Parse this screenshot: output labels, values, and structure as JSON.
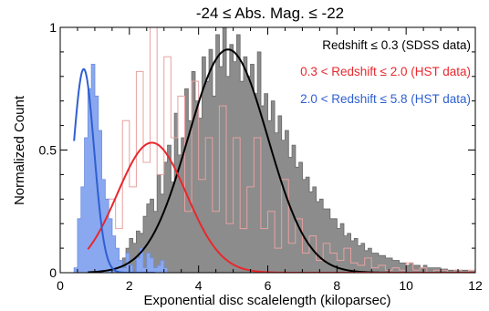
{
  "chart_data": {
    "type": "histogram",
    "title": "-24 ≤ Abs. Mag. ≤ -22",
    "xlabel": "Exponential disc scalelength (kiloparsec)",
    "ylabel": "Normalized Count",
    "xlim": [
      0,
      12
    ],
    "ylim": [
      0,
      1
    ],
    "x_ticks": [
      {
        "value": 0,
        "label": "0"
      },
      {
        "value": 2,
        "label": "2"
      },
      {
        "value": 4,
        "label": "4"
      },
      {
        "value": 6,
        "label": "6"
      },
      {
        "value": 8,
        "label": "8"
      },
      {
        "value": 10,
        "label": "10"
      },
      {
        "value": 12,
        "label": "12"
      }
    ],
    "y_ticks": [
      {
        "value": 0,
        "label": "0"
      },
      {
        "value": 0.5,
        "label": "0.5"
      },
      {
        "value": 1,
        "label": "1"
      }
    ],
    "grid": false,
    "legend_position": "top-right",
    "series": [
      {
        "name": "Redshift ≤ 0.3 (SDSS data)",
        "color": "#000000",
        "hist_color": "#8c8c8c",
        "hist_style": "filled",
        "bin_start": 1.8,
        "bin_width": 0.1,
        "hist_values": [
          0.06,
          0.1,
          0.14,
          0.12,
          0.17,
          0.16,
          0.23,
          0.28,
          0.3,
          0.25,
          0.4,
          0.32,
          0.45,
          0.52,
          0.37,
          0.65,
          0.48,
          0.55,
          0.75,
          0.62,
          0.82,
          0.7,
          0.63,
          0.88,
          0.78,
          0.91,
          0.72,
          0.97,
          0.84,
          1.0,
          0.8,
          0.93,
          0.86,
          0.97,
          0.78,
          0.88,
          0.8,
          0.85,
          0.73,
          0.9,
          0.68,
          0.73,
          0.62,
          0.7,
          0.57,
          0.64,
          0.54,
          0.58,
          0.47,
          0.52,
          0.43,
          0.45,
          0.38,
          0.39,
          0.33,
          0.35,
          0.29,
          0.3,
          0.26,
          0.26,
          0.22,
          0.22,
          0.18,
          0.2,
          0.15,
          0.16,
          0.13,
          0.14,
          0.11,
          0.12,
          0.09,
          0.1,
          0.08,
          0.08,
          0.07,
          0.07,
          0.06,
          0.06,
          0.05,
          0.05,
          0.04,
          0.04,
          0.03,
          0.04,
          0.03,
          0.03,
          0.02,
          0.03,
          0.02,
          0.02,
          0.02,
          0.02,
          0.015,
          0.015,
          0.01,
          0.01,
          0.01,
          0.01,
          0.01,
          0.01,
          0.005,
          0.005
        ],
        "fit": {
          "x_start": 0.8,
          "x_end": 9.9,
          "peak_x": 4.85,
          "peak_y": 0.91,
          "sigma": 1.15
        }
      },
      {
        "name": "0.3 < Redshift ≤ 2.0 (HST data)",
        "color": "#e8282d",
        "hist_color": "#e8a0a0",
        "hist_style": "step",
        "bin_start": 0.8,
        "bin_width": 0.2,
        "hist_values": [
          0.12,
          0.22,
          0.05,
          0.3,
          0.18,
          0.62,
          0.35,
          0.82,
          0.45,
          1.0,
          0.4,
          0.88,
          0.55,
          0.72,
          0.25,
          0.78,
          0.38,
          0.55,
          0.25,
          0.68,
          0.2,
          0.55,
          0.18,
          0.35,
          0.55,
          0.18,
          0.25,
          0.1,
          0.38,
          0.12,
          0.22,
          0.08,
          0.15,
          0.05,
          0.12,
          0.08,
          0.05,
          0.1,
          0.04,
          0.03,
          0.06,
          0.02,
          0.03,
          0.01,
          0.02,
          0.01,
          0.04,
          0.01,
          0.02,
          0.0,
          0.01,
          0.01,
          0.0,
          0.01,
          0.0,
          0.01
        ],
        "fit": {
          "x_start": 0.8,
          "x_end": 12.0,
          "peak_x": 2.65,
          "peak_y": 0.53,
          "sigma": 1.0
        }
      },
      {
        "name": "2.0 < Redshift ≤ 5.8 (HST data)",
        "color": "#2e5fd0",
        "hist_color": "#8aa8f0",
        "hist_style": "filled",
        "bin_start": 0.4,
        "bin_width": 0.1,
        "hist_values": [
          0.02,
          0.22,
          0.35,
          0.55,
          0.75,
          0.85,
          0.72,
          0.58,
          0.38,
          0.3,
          0.22,
          0.15,
          0.1,
          0.05,
          0.02,
          0.08,
          0.03,
          0.0,
          0.06,
          0.1,
          0.02,
          0.08,
          0.06,
          0.02,
          0.03,
          0.05,
          0.02
        ],
        "fit": {
          "x_start": 0.4,
          "x_end": 2.75,
          "peak_x": 0.68,
          "peak_y": 0.83,
          "sigma": 0.3
        }
      }
    ]
  }
}
